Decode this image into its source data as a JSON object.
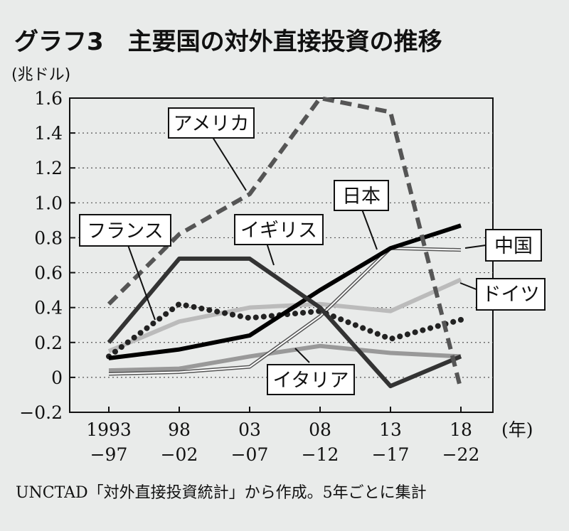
{
  "chart_data": {
    "type": "line",
    "title": "グラフ3　主要国の対外直接投資の推移",
    "unit_label": "(兆ドル)",
    "x_unit": "(年)",
    "source": "UNCTAD「対外直接投資統計」から作成。5年ごとに集計",
    "categories": [
      {
        "top": "1993",
        "bottom": "−97"
      },
      {
        "top": "98",
        "bottom": "−02"
      },
      {
        "top": "03",
        "bottom": "−07"
      },
      {
        "top": "08",
        "bottom": "−12"
      },
      {
        "top": "13",
        "bottom": "−17"
      },
      {
        "top": "18",
        "bottom": "−22"
      }
    ],
    "ylim": [
      -0.2,
      1.6
    ],
    "yticks": [
      "1.6",
      "1.4",
      "1.2",
      "1.0",
      "0.8",
      "0.6",
      "0.4",
      "0.2",
      "0",
      "−0.2"
    ],
    "ytick_values": [
      1.6,
      1.4,
      1.2,
      1.0,
      0.8,
      0.6,
      0.4,
      0.2,
      0,
      -0.2
    ],
    "grid": true,
    "series": [
      {
        "name": "アメリカ",
        "color": "#555555",
        "style": "dashed-thick",
        "values": [
          0.42,
          0.82,
          1.05,
          1.6,
          1.52,
          -0.07
        ]
      },
      {
        "name": "イギリス",
        "color": "#333333",
        "style": "solid-thick",
        "values": [
          0.2,
          0.68,
          0.68,
          0.4,
          -0.05,
          0.12
        ]
      },
      {
        "name": "フランス",
        "color": "#222222",
        "style": "dotted",
        "values": [
          0.12,
          0.42,
          0.34,
          0.38,
          0.22,
          0.33
        ]
      },
      {
        "name": "中国",
        "color": "#000000",
        "style": "solid-thick",
        "values": [
          0.11,
          0.16,
          0.24,
          0.5,
          0.74,
          0.87
        ]
      },
      {
        "name": "日本",
        "color": "#555555",
        "style": "double",
        "values": [
          0.02,
          0.03,
          0.06,
          0.35,
          0.74,
          0.73
        ]
      },
      {
        "name": "ドイツ",
        "color": "#bbbbbb",
        "style": "solid-light",
        "values": [
          0.15,
          0.32,
          0.4,
          0.42,
          0.38,
          0.56
        ]
      },
      {
        "name": "イタリア",
        "color": "#999999",
        "style": "solid-mid",
        "values": [
          0.04,
          0.05,
          0.12,
          0.18,
          0.14,
          0.12
        ]
      }
    ]
  }
}
